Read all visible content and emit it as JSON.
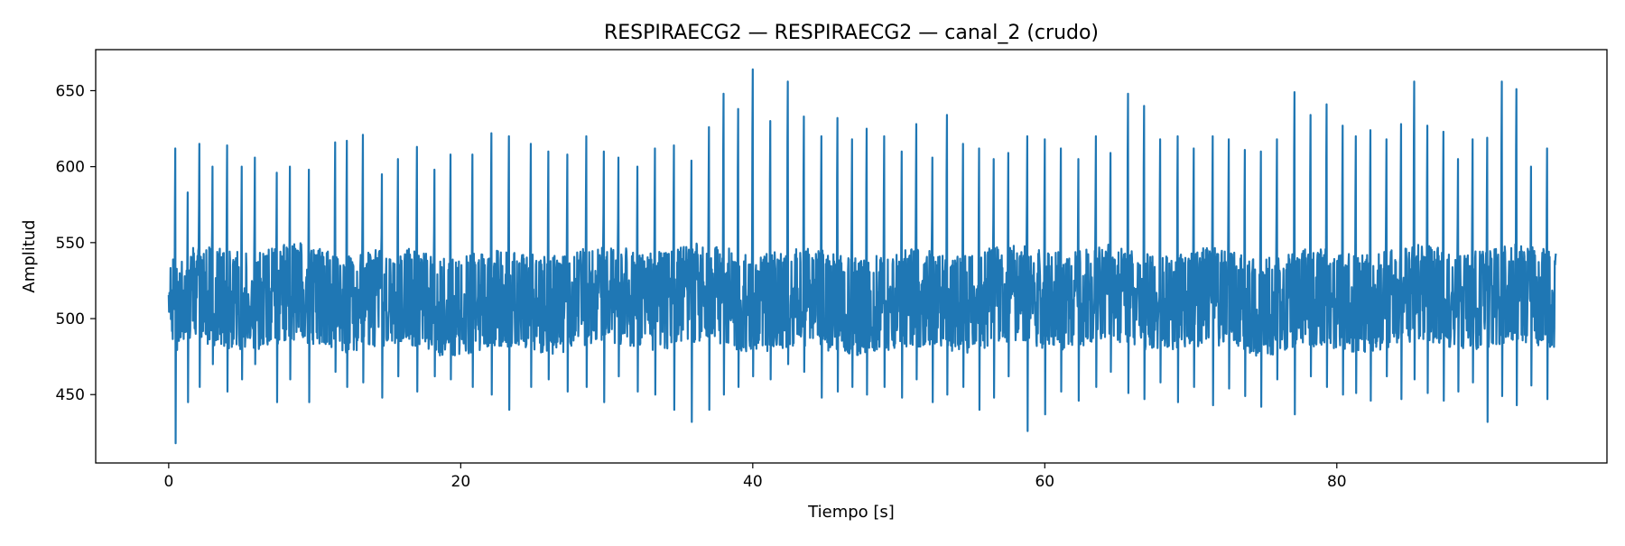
{
  "chart_data": {
    "type": "line",
    "title": "RESPIRAECG2 — RESPIRAECG2 — canal_2 (crudo)",
    "xlabel": "Tiempo [s]",
    "ylabel": "Amplitud",
    "xlim": [
      -5,
      98.5
    ],
    "ylim": [
      405,
      677
    ],
    "xticks": [
      0,
      20,
      40,
      60,
      80
    ],
    "yticks": [
      450,
      500,
      550,
      600,
      650
    ],
    "grid": false,
    "legend": "none",
    "color": "#1f77b4",
    "series": [
      {
        "x_range": [
          0,
          95
        ],
        "baseline": 509,
        "noise_band": [
          480,
          545
        ],
        "beat_times": [
          0.45,
          1.3,
          2.1,
          3.0,
          4.0,
          5.0,
          5.9,
          7.4,
          8.3,
          9.6,
          11.4,
          12.2,
          13.3,
          14.6,
          15.7,
          17.0,
          18.2,
          19.3,
          20.8,
          22.1,
          23.3,
          24.8,
          26.0,
          27.3,
          28.6,
          29.8,
          30.8,
          32.1,
          33.3,
          34.6,
          35.8,
          37.0,
          38.0,
          39.0,
          40.0,
          41.2,
          42.4,
          43.5,
          44.7,
          45.8,
          46.8,
          47.8,
          49.0,
          50.2,
          51.2,
          52.3,
          53.3,
          54.4,
          55.5,
          56.5,
          57.5,
          58.8,
          60.0,
          61.1,
          62.3,
          63.5,
          64.5,
          65.7,
          66.8,
          67.9,
          69.1,
          70.2,
          71.5,
          72.6,
          73.7,
          74.8,
          75.9,
          77.1,
          78.2,
          79.3,
          80.4,
          81.3,
          82.3,
          83.4,
          84.4,
          85.3,
          86.2,
          87.3,
          88.3,
          89.3,
          90.3,
          91.3,
          92.3,
          93.3,
          94.4
        ],
        "beat_peaks": [
          612,
          583,
          615,
          600,
          614,
          600,
          606,
          596,
          600,
          598,
          616,
          617,
          621,
          595,
          605,
          613,
          598,
          608,
          608,
          622,
          620,
          615,
          610,
          608,
          620,
          610,
          606,
          600,
          612,
          614,
          604,
          626,
          648,
          638,
          664,
          630,
          656,
          633,
          620,
          632,
          618,
          625,
          620,
          610,
          628,
          606,
          634,
          615,
          612,
          605,
          609,
          620,
          618,
          612,
          605,
          620,
          609,
          648,
          640,
          618,
          620,
          612,
          620,
          618,
          611,
          610,
          618,
          649,
          634,
          641,
          627,
          620,
          624,
          618,
          628,
          656,
          627,
          623,
          605,
          618,
          619,
          656,
          651,
          600,
          612
        ],
        "beat_troughs": [
          418,
          445,
          455,
          470,
          452,
          460,
          470,
          445,
          460,
          445,
          465,
          455,
          458,
          448,
          462,
          452,
          462,
          460,
          455,
          450,
          440,
          455,
          460,
          452,
          455,
          445,
          462,
          452,
          450,
          440,
          432,
          440,
          450,
          455,
          462,
          460,
          470,
          465,
          448,
          452,
          455,
          450,
          455,
          448,
          460,
          445,
          450,
          455,
          440,
          448,
          462,
          426,
          437,
          452,
          446,
          455,
          465,
          451,
          447,
          458,
          445,
          455,
          443,
          454,
          449,
          442,
          460,
          437,
          462,
          455,
          450,
          451,
          446,
          462,
          447,
          460,
          451,
          446,
          452,
          458,
          432,
          449,
          443,
          456,
          447
        ]
      }
    ]
  }
}
